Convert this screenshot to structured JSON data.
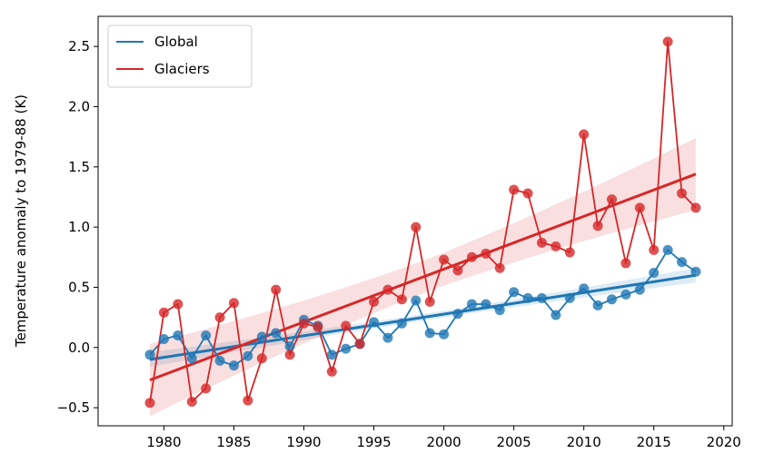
{
  "chart_data": {
    "type": "line",
    "title": "",
    "xlabel": "",
    "ylabel": "Temperature anomaly to 1979-88 (K)",
    "xlim": [
      1975.3,
      2020.6
    ],
    "ylim": [
      -0.65,
      2.75
    ],
    "xticks": [
      1980,
      1985,
      1990,
      1995,
      2000,
      2005,
      2010,
      2015,
      2020
    ],
    "yticks": [
      -0.5,
      0.0,
      0.5,
      1.0,
      1.5,
      2.0,
      2.5
    ],
    "ytick_labels": [
      "−0.5",
      "0.0",
      "0.5",
      "1.0",
      "1.5",
      "2.0",
      "2.5"
    ],
    "grid": false,
    "legend_position": "top-left",
    "x": [
      1979,
      1980,
      1981,
      1982,
      1983,
      1984,
      1985,
      1986,
      1987,
      1988,
      1989,
      1990,
      1991,
      1992,
      1993,
      1994,
      1995,
      1996,
      1997,
      1998,
      1999,
      2000,
      2001,
      2002,
      2003,
      2004,
      2005,
      2006,
      2007,
      2008,
      2009,
      2010,
      2011,
      2012,
      2013,
      2014,
      2015,
      2016,
      2017,
      2018
    ],
    "series": [
      {
        "name": "Global",
        "color": "#1f77b4",
        "values": [
          -0.06,
          0.07,
          0.1,
          -0.09,
          0.1,
          -0.11,
          -0.15,
          -0.07,
          0.09,
          0.12,
          0.01,
          0.23,
          0.18,
          -0.06,
          -0.01,
          0.03,
          0.21,
          0.08,
          0.2,
          0.39,
          0.12,
          0.11,
          0.28,
          0.36,
          0.36,
          0.31,
          0.46,
          0.41,
          0.41,
          0.27,
          0.41,
          0.49,
          0.35,
          0.4,
          0.44,
          0.48,
          0.62,
          0.81,
          0.71,
          0.63
        ],
        "trend": [
          -0.1,
          0.6
        ],
        "trend_band": 0.06
      },
      {
        "name": "Glaciers",
        "color": "#d62728",
        "values": [
          -0.46,
          0.29,
          0.36,
          -0.45,
          -0.34,
          0.25,
          0.37,
          -0.44,
          -0.09,
          0.48,
          -0.06,
          0.2,
          0.17,
          -0.2,
          0.18,
          0.03,
          0.38,
          0.48,
          0.4,
          1.0,
          0.38,
          0.73,
          0.64,
          0.75,
          0.78,
          0.66,
          1.31,
          1.28,
          0.87,
          0.84,
          0.79,
          1.77,
          1.01,
          1.23,
          0.7,
          1.16,
          0.81,
          2.54,
          1.28,
          1.16
        ],
        "trend": [
          -0.27,
          1.44
        ],
        "trend_band": 0.3
      }
    ]
  }
}
